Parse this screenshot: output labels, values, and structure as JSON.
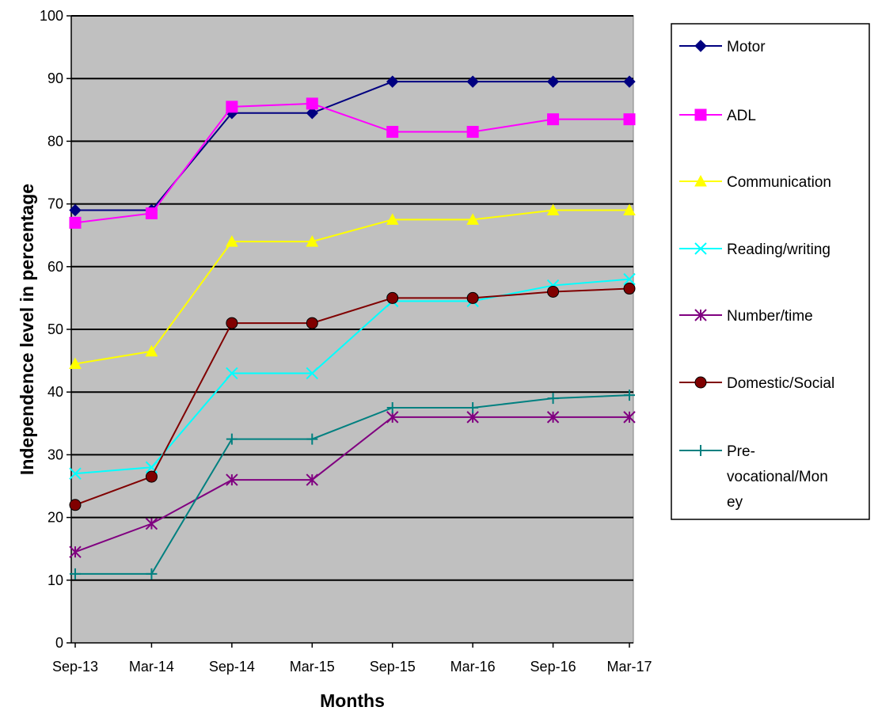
{
  "chart_data": {
    "type": "line",
    "title": "",
    "xlabel": "Months",
    "ylabel": "Independence level in percentage",
    "categories": [
      "Sep-13",
      "Mar-14",
      "Sep-14",
      "Mar-15",
      "Sep-15",
      "Mar-16",
      "Sep-16",
      "Mar-17"
    ],
    "ylim": [
      0,
      100
    ],
    "yticks": [
      0,
      10,
      20,
      30,
      40,
      50,
      60,
      70,
      80,
      90,
      100
    ],
    "grid": true,
    "legend_position": "right",
    "plot_background": "#C0C0C0",
    "series": [
      {
        "name": "Motor",
        "values": [
          69,
          69,
          84.5,
          84.5,
          89.5,
          89.5,
          89.5,
          89.5
        ],
        "color": "#000080",
        "marker": "diamond"
      },
      {
        "name": "ADL",
        "values": [
          67,
          68.5,
          85.5,
          86,
          81.5,
          81.5,
          83.5,
          83.5
        ],
        "color": "#FF00FF",
        "marker": "square"
      },
      {
        "name": "Communication",
        "values": [
          44.5,
          46.5,
          64,
          64,
          67.5,
          67.5,
          69,
          69
        ],
        "color": "#FFFF00",
        "marker": "triangle"
      },
      {
        "name": "Reading/writing",
        "values": [
          27,
          28,
          43,
          43,
          54.5,
          54.5,
          57,
          58
        ],
        "color": "#00FFFF",
        "marker": "x"
      },
      {
        "name": "Number/time",
        "values": [
          14.5,
          19,
          26,
          26,
          36,
          36,
          36,
          36
        ],
        "color": "#800080",
        "marker": "asterisk"
      },
      {
        "name": "Domestic/Social",
        "values": [
          22,
          26.5,
          51,
          51,
          55,
          55,
          56,
          56.5
        ],
        "color": "#800000",
        "marker": "circle"
      },
      {
        "name": "Pre-vocational/Money",
        "values": [
          11,
          11,
          32.5,
          32.5,
          37.5,
          37.5,
          39,
          39.5
        ],
        "color": "#008080",
        "marker": "plus"
      }
    ]
  }
}
